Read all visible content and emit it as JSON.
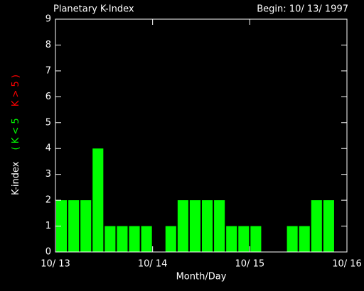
{
  "chart_data": {
    "type": "bar",
    "title": "Planetary K-Index",
    "subtitle": "Begin: 10/ 13/ 1997",
    "xlabel": "Month/Day",
    "ylabel": "K-index",
    "legend": [
      {
        "label": "( K < 5",
        "color": "#00ff00"
      },
      {
        "label": "K > 5 )",
        "color": "#ff0000"
      }
    ],
    "x": [
      0,
      3,
      6,
      9,
      12,
      15,
      18,
      21,
      24,
      27,
      30,
      33,
      36,
      39,
      42,
      45,
      48,
      51,
      54,
      57,
      60,
      63,
      66,
      69
    ],
    "series": [
      {
        "color": "#00ff00",
        "values": [
          2,
          2,
          2,
          4,
          1,
          1,
          1,
          1,
          0,
          1,
          2,
          2,
          2,
          2,
          1,
          1,
          1,
          0,
          0,
          1,
          1,
          2,
          2,
          0
        ]
      }
    ],
    "xlim": [
      0,
      72
    ],
    "xticks": [
      {
        "value": 0,
        "label": "10/ 13"
      },
      {
        "value": 24,
        "label": "10/ 14"
      },
      {
        "value": 48,
        "label": "10/ 15"
      },
      {
        "value": 72,
        "label": "10/ 16"
      }
    ],
    "ylim": [
      0,
      9
    ],
    "yticks": [
      0,
      1,
      2,
      3,
      4,
      5,
      6,
      7,
      8,
      9
    ]
  }
}
